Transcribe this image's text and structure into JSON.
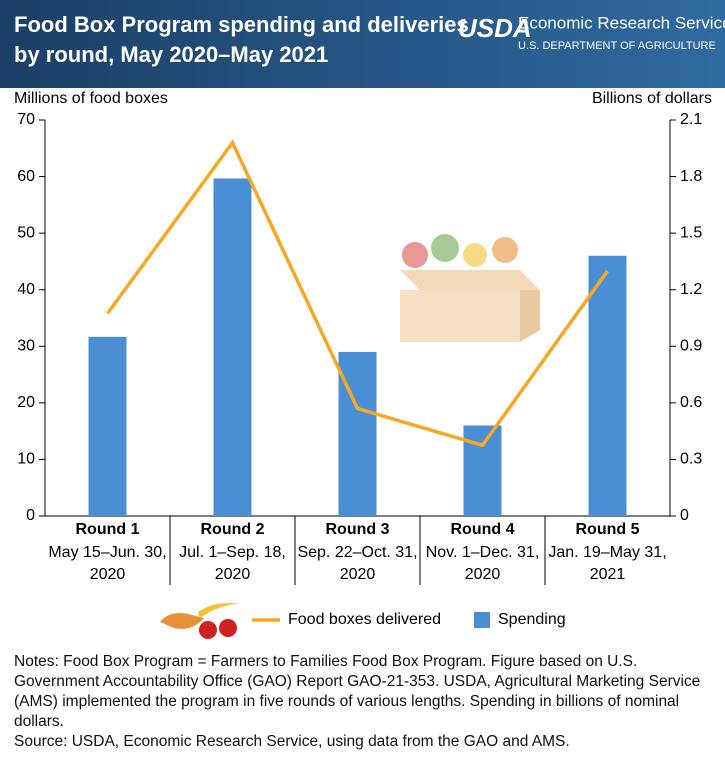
{
  "header": {
    "org": "Economic Research Service",
    "dept": "U.S. DEPARTMENT OF AGRICULTURE",
    "logo": "USDA"
  },
  "chart_data": {
    "type": "combo",
    "title": [
      "Food Box Program spending and deliveries",
      "by round, May 2020–May 2021"
    ],
    "y_label": "Millions of food boxes",
    "y2_label": "Billions of dollars",
    "categories": [
      "Round 1",
      "Round 2",
      "Round 3",
      "Round 4",
      "Round 5"
    ],
    "category_dates": [
      [
        "May 15–Jun. 30,",
        "2020"
      ],
      [
        "Jul. 1–Sep. 18,",
        "2020"
      ],
      [
        "Sep. 22–Oct. 31,",
        "2020"
      ],
      [
        "Nov. 1–Dec. 31,",
        "2020"
      ],
      [
        "Jan. 19–May 31,",
        "2021"
      ]
    ],
    "series": [
      {
        "name": "Spending",
        "type": "bar",
        "axis": "y2",
        "color": "#4a8fd4",
        "values": [
          0.95,
          1.79,
          0.87,
          0.48,
          1.38
        ]
      },
      {
        "name": "Food boxes delivered",
        "type": "line",
        "color": "#f7a823",
        "values": [
          35.8,
          66.0,
          19.0,
          12.5,
          43.3
        ]
      }
    ],
    "legend_order": [
      1,
      0
    ],
    "ylim": [
      0,
      70
    ],
    "yticks": [
      0,
      10,
      20,
      30,
      40,
      50,
      60,
      70
    ],
    "y2lim": [
      0,
      2.1
    ],
    "y2ticks": [
      0,
      0.3,
      0.6,
      0.9,
      1.2,
      1.5,
      1.8,
      2.1
    ]
  },
  "notes": [
    "Notes:  Food Box Program = Farmers to Families Food Box Program. Figure based on U.S. Government Accountability Office (GAO) Report GAO-21-353. USDA, Agricultural Marketing Service (AMS) implemented the program in five rounds of various lengths. Spending in billions of nominal dollars.",
    "Source: USDA, Economic Research Service, using data from the GAO and AMS."
  ]
}
